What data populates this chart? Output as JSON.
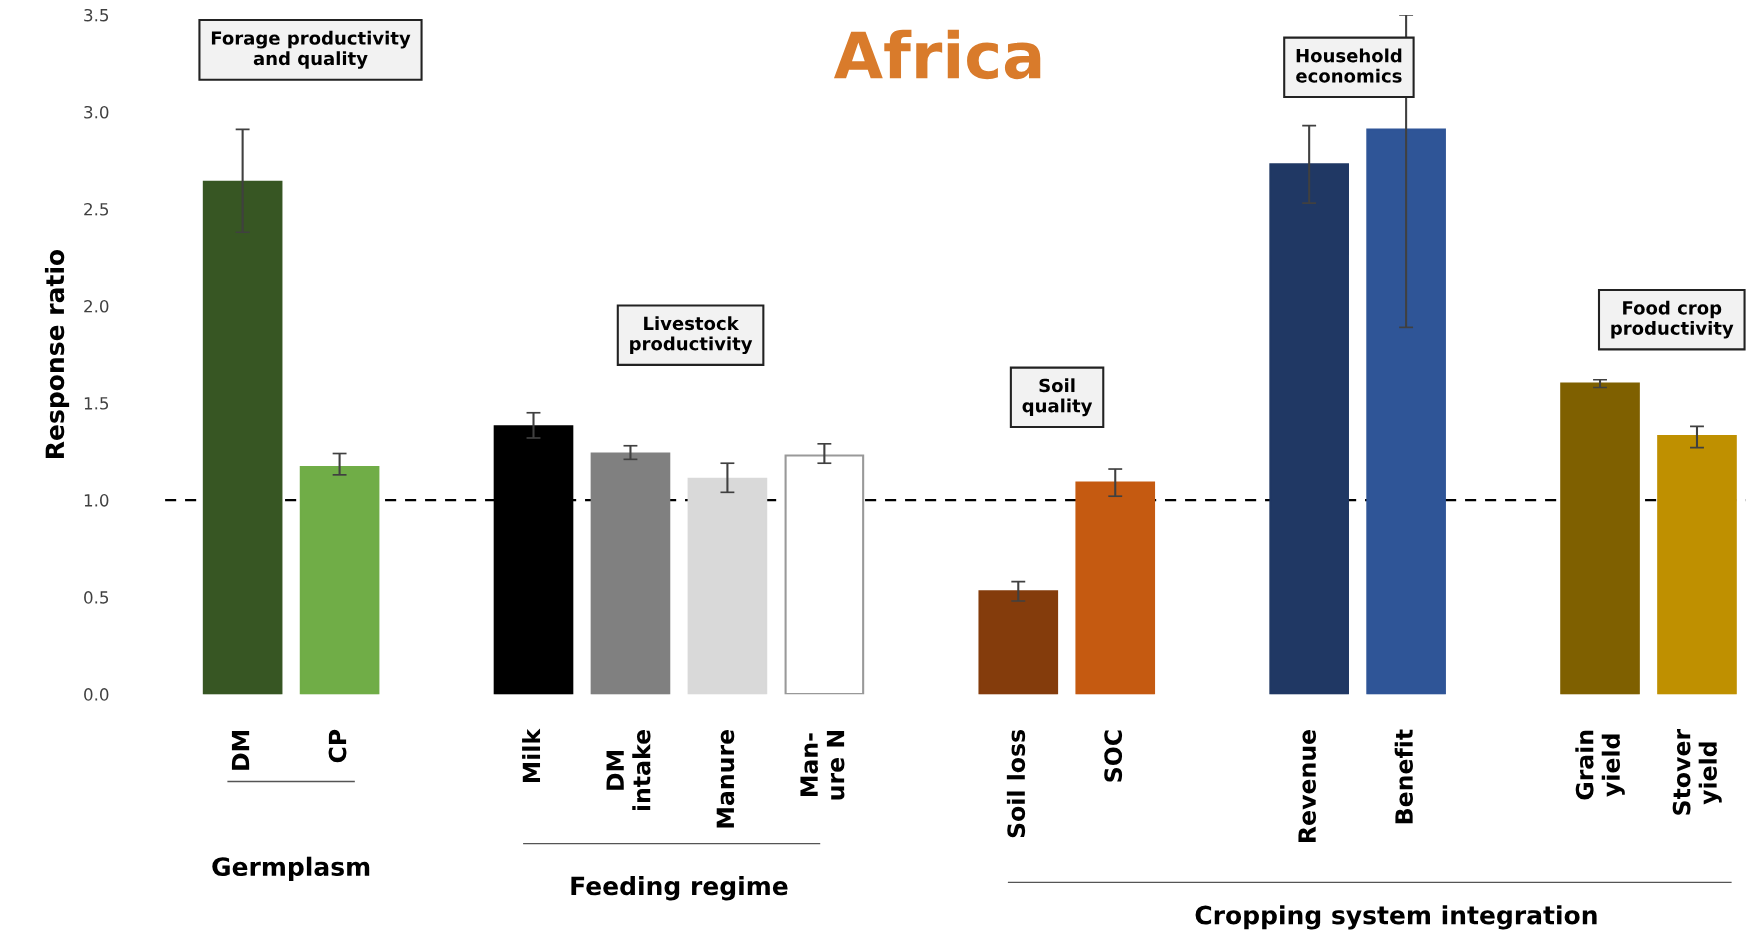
{
  "chart_data": {
    "type": "bar",
    "title": "Africa",
    "ylabel": "Response ratio",
    "categories": [
      "DM",
      "CP",
      null,
      "Milk",
      "DM\nintake",
      "Manure",
      "Man-\nure N",
      null,
      "Soil loss",
      "SOC",
      null,
      "Revenue",
      "Benefit",
      null,
      "Grain\nyield",
      "Stover\nyield"
    ],
    "values": [
      2.64,
      1.17,
      null,
      1.38,
      1.24,
      1.11,
      1.23,
      null,
      0.53,
      1.09,
      null,
      2.73,
      2.91,
      null,
      1.6,
      1.33
    ],
    "colors": [
      "#375623",
      "#70ad47",
      "#ffffff",
      "#000000",
      "#808080",
      "#d9d9d9",
      "#ffffff",
      "#ffffff",
      "#843c0c",
      "#c55a11",
      "#ffffff",
      "#203864",
      "#2f5597",
      "#ffffff",
      "#7f6000",
      "#bf9000"
    ],
    "errors": [
      [
        2.38,
        2.91
      ],
      [
        1.13,
        1.24
      ],
      null,
      [
        1.32,
        1.45
      ],
      [
        1.21,
        1.28
      ],
      [
        1.04,
        1.19
      ],
      [
        1.19,
        1.29
      ],
      null,
      [
        0.48,
        0.58
      ],
      [
        1.02,
        1.16
      ],
      null,
      [
        2.53,
        2.93
      ],
      [
        1.89,
        3.5
      ],
      null,
      [
        1.58,
        1.62
      ],
      [
        1.27,
        1.38
      ]
    ],
    "ylim": [
      0,
      3.5
    ],
    "yticks": [
      {
        "value": 0,
        "label": "0.0"
      },
      {
        "value": 0.5,
        "label": "0.5"
      },
      {
        "value": 1,
        "label": "1.0"
      },
      {
        "value": 1.5,
        "label": "1.5"
      },
      {
        "value": 2,
        "label": "2.0"
      },
      {
        "value": 2.5,
        "label": "2.5"
      },
      {
        "value": 3,
        "label": "3.0"
      },
      {
        "value": 3.5,
        "label": "3.5"
      }
    ],
    "ref_lines": [
      {
        "axis": "y",
        "value": 1,
        "color": "#000000",
        "line_style": "dashed"
      }
    ],
    "annotations": [
      "Forage productivity\nand quality",
      "Livestock\nproductivity",
      "Soil\nquality",
      "Household\neconomics",
      "Food crop\nproductivity",
      "Germplasm",
      "Feeding regime",
      "Cropping system integration"
    ],
    "grid": false
  }
}
